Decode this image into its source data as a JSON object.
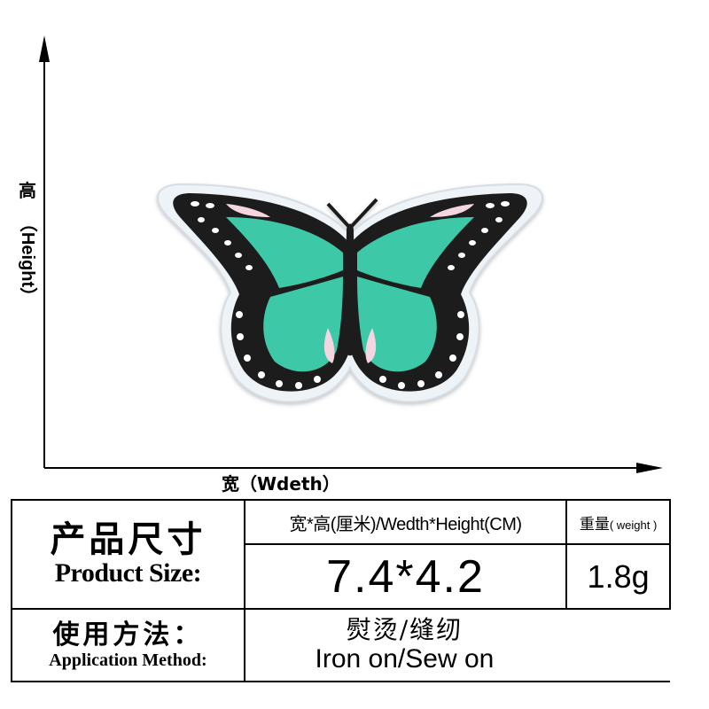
{
  "axes": {
    "height_label_cn": "高",
    "height_label_en": "（Height）",
    "width_label": "宽（Wdeth）"
  },
  "colors": {
    "wing_teal": "#3ec9a7",
    "wing_border": "#1d1d1d",
    "patch_edge": "#eef3f8",
    "highlight_pink": "#f3d6e0"
  },
  "table": {
    "product_size_cn": "产品尺寸",
    "product_size_en": "Product Size:",
    "size_header": "宽*高(厘米)/Wedth*Height(CM)",
    "weight_header_cn": "重量",
    "weight_header_en": "( weight )",
    "size_value": "7.4*4.2",
    "weight_value": "1.8g",
    "application_cn": "使用方法：",
    "application_en": "Application Method:",
    "method_cn": "熨烫/缝纫",
    "method_en": "Iron on/Sew on"
  }
}
